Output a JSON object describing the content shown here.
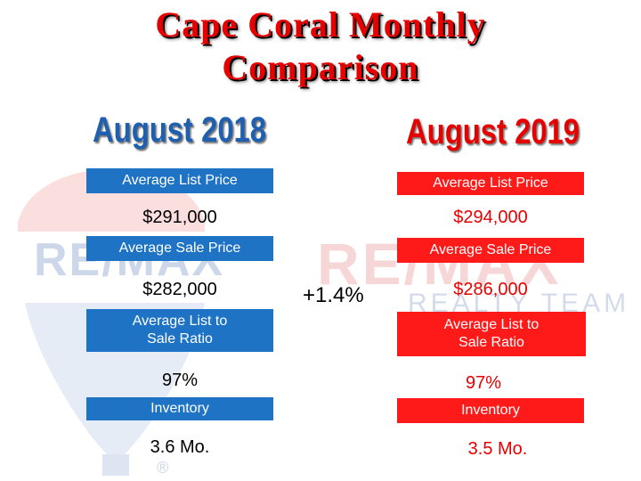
{
  "title_line1": "Cape Coral Monthly",
  "title_line2": "Comparison",
  "left": {
    "heading": "August 2018",
    "list_price_label": "Average List Price",
    "list_price": "$291,000",
    "sale_price_label": "Average Sale Price",
    "sale_price": "$282,000",
    "ratio_label_line1": "Average List to",
    "ratio_label_line2": "Sale Ratio",
    "ratio": "97%",
    "inventory_label": "Inventory",
    "inventory": "3.6 Mo."
  },
  "right": {
    "heading": "August 2019",
    "list_price_label": "Average List Price",
    "list_price": "$294,000",
    "sale_price_label": "Average Sale Price",
    "sale_price": "$286,000",
    "ratio_label_line1": "Average List to",
    "ratio_label_line2": "Sale Ratio",
    "ratio": "97%",
    "inventory_label": "Inventory",
    "inventory": "3.5 Mo."
  },
  "sale_price_change": "+1.4%",
  "watermark": {
    "brand_left": "RE/MAX",
    "brand_right": "RE/MAX",
    "brand_sub": "REALTY TEAM",
    "registered": "®"
  },
  "colors": {
    "title_red": "#e60000",
    "heading_blue": "#1f5fb0",
    "box_blue": "#1f73c4",
    "box_red": "#ff1a1a"
  }
}
